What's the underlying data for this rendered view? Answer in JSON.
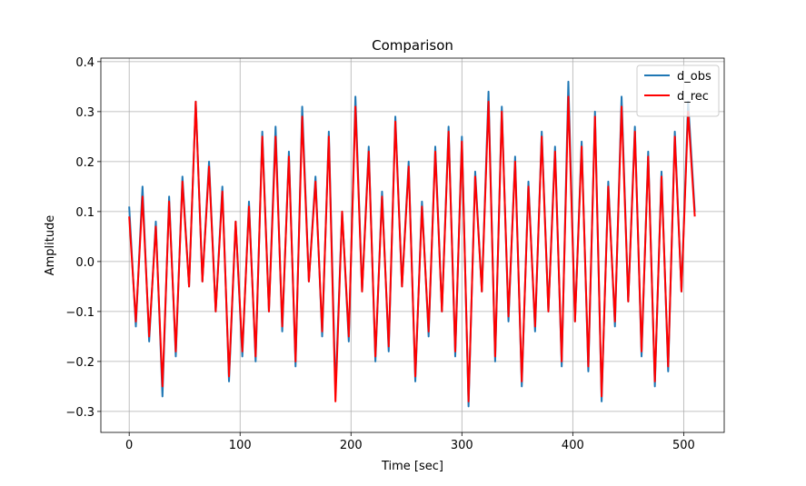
{
  "chart_data": {
    "type": "line",
    "title": "Comparison",
    "x_label": "Time [sec]",
    "y_label": "Amplitude",
    "x": [
      0,
      6,
      12,
      18,
      24,
      30,
      36,
      42,
      48,
      54,
      60,
      66,
      72,
      78,
      84,
      90,
      96,
      102,
      108,
      114,
      120,
      126,
      132,
      138,
      144,
      150,
      156,
      162,
      168,
      174,
      180,
      186,
      192,
      198,
      204,
      210,
      216,
      222,
      228,
      234,
      240,
      246,
      252,
      258,
      264,
      270,
      276,
      282,
      288,
      294,
      300,
      306,
      312,
      318,
      324,
      330,
      336,
      342,
      348,
      354,
      360,
      366,
      372,
      378,
      384,
      390,
      396,
      402,
      408,
      414,
      420,
      426,
      432,
      438,
      444,
      450,
      456,
      462,
      468,
      474,
      480,
      486,
      492,
      498,
      504,
      510
    ],
    "series": [
      {
        "name": "d_obs",
        "color": "#1f77b4",
        "values": [
          0.11,
          -0.13,
          0.15,
          -0.16,
          0.08,
          -0.27,
          0.13,
          -0.19,
          0.17,
          -0.05,
          0.32,
          -0.04,
          0.2,
          -0.1,
          0.15,
          -0.24,
          0.08,
          -0.19,
          0.12,
          -0.2,
          0.26,
          -0.1,
          0.27,
          -0.14,
          0.22,
          -0.21,
          0.31,
          -0.04,
          0.17,
          -0.15,
          0.26,
          -0.26,
          0.1,
          -0.16,
          0.33,
          -0.06,
          0.23,
          -0.2,
          0.14,
          -0.18,
          0.29,
          -0.05,
          0.2,
          -0.24,
          0.12,
          -0.15,
          0.23,
          -0.1,
          0.27,
          -0.19,
          0.25,
          -0.29,
          0.18,
          -0.06,
          0.34,
          -0.2,
          0.31,
          -0.12,
          0.21,
          -0.25,
          0.16,
          -0.14,
          0.26,
          -0.1,
          0.23,
          -0.21,
          0.36,
          -0.12,
          0.24,
          -0.22,
          0.3,
          -0.28,
          0.16,
          -0.13,
          0.33,
          -0.08,
          0.27,
          -0.19,
          0.22,
          -0.25,
          0.18,
          -0.22,
          0.26,
          -0.06,
          0.32,
          0.1
        ]
      },
      {
        "name": "d_rec",
        "color": "#ff0000",
        "values": [
          0.09,
          -0.12,
          0.13,
          -0.15,
          0.07,
          -0.25,
          0.12,
          -0.18,
          0.16,
          -0.05,
          0.32,
          -0.04,
          0.19,
          -0.1,
          0.14,
          -0.23,
          0.08,
          -0.18,
          0.11,
          -0.19,
          0.25,
          -0.1,
          0.25,
          -0.13,
          0.21,
          -0.2,
          0.29,
          -0.04,
          0.16,
          -0.14,
          0.25,
          -0.28,
          0.1,
          -0.15,
          0.31,
          -0.06,
          0.22,
          -0.19,
          0.13,
          -0.17,
          0.28,
          -0.05,
          0.19,
          -0.23,
          0.11,
          -0.14,
          0.22,
          -0.1,
          0.26,
          -0.18,
          0.24,
          -0.28,
          0.17,
          -0.06,
          0.32,
          -0.19,
          0.3,
          -0.11,
          0.2,
          -0.24,
          0.15,
          -0.13,
          0.25,
          -0.1,
          0.22,
          -0.2,
          0.33,
          -0.12,
          0.23,
          -0.21,
          0.29,
          -0.27,
          0.15,
          -0.12,
          0.31,
          -0.08,
          0.26,
          -0.18,
          0.21,
          -0.24,
          0.17,
          -0.21,
          0.25,
          -0.06,
          0.3,
          0.09
        ]
      }
    ],
    "xlim": [
      -25.55,
      536.55
    ],
    "xticks": [
      0,
      100,
      200,
      300,
      400,
      500
    ],
    "ylim": [
      -0.342,
      0.407
    ],
    "yticks": [
      {
        "value": -0.3,
        "label": "−0.3"
      },
      {
        "value": -0.2,
        "label": "−0.2"
      },
      {
        "value": -0.1,
        "label": "−0.1"
      },
      {
        "value": 0,
        "label": "0.0"
      },
      {
        "value": 0.1,
        "label": "0.1"
      },
      {
        "value": 0.2,
        "label": "0.2"
      },
      {
        "value": 0.3,
        "label": "0.3"
      },
      {
        "value": 0.4,
        "label": "0.4"
      }
    ],
    "grid": true,
    "legend": "upper right"
  }
}
